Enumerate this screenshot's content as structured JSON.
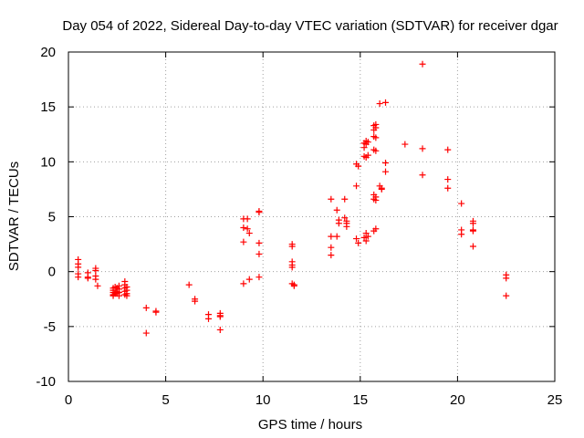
{
  "chart_data": {
    "type": "scatter",
    "title": "Day 054 of 2022, Sidereal Day-to-day VTEC variation (SDTVAR) for receiver dgar",
    "xlabel": "GPS time / hours",
    "ylabel": "SDTVAR / TECUs",
    "xlim": [
      0,
      25
    ],
    "ylim": [
      -10,
      20
    ],
    "xticks": [
      0,
      5,
      10,
      15,
      20,
      25
    ],
    "yticks": [
      -10,
      -5,
      0,
      5,
      10,
      15,
      20
    ],
    "grid": true,
    "marker": "plus",
    "color": "#ff0000",
    "series": [
      {
        "name": "SDTVAR",
        "x": [
          0.5,
          0.5,
          0.5,
          0.5,
          0.5,
          1.0,
          1.0,
          1.0,
          1.4,
          1.4,
          1.4,
          1.4,
          1.5,
          2.3,
          2.3,
          2.3,
          2.3,
          2.3,
          2.4,
          2.4,
          2.5,
          2.5,
          2.5,
          2.6,
          2.6,
          2.6,
          2.6,
          2.9,
          2.9,
          2.9,
          2.9,
          2.9,
          3.0,
          3.0,
          3.0,
          3.0,
          4.0,
          4.0,
          4.5,
          4.5,
          6.2,
          6.5,
          6.5,
          7.2,
          7.2,
          7.8,
          7.8,
          7.8,
          7.8,
          9.0,
          9.0,
          9.0,
          9.0,
          9.2,
          9.2,
          9.3,
          9.3,
          9.8,
          9.8,
          9.8,
          9.8,
          9.8,
          11.5,
          11.5,
          11.5,
          11.5,
          11.5,
          11.5,
          11.6,
          11.6,
          13.5,
          13.5,
          13.5,
          13.5,
          13.8,
          13.8,
          13.9,
          13.9,
          14.2,
          14.2,
          14.3,
          14.3,
          14.3,
          14.8,
          14.8,
          14.8,
          14.9,
          14.9,
          15.2,
          15.2,
          15.2,
          15.2,
          15.3,
          15.3,
          15.3,
          15.3,
          15.3,
          15.4,
          15.4,
          15.4,
          15.7,
          15.7,
          15.7,
          15.7,
          15.7,
          15.7,
          15.7,
          15.8,
          15.8,
          15.8,
          15.8,
          15.8,
          15.8,
          15.8,
          16.0,
          16.0,
          16.1,
          16.1,
          16.3,
          16.3,
          16.3,
          17.3,
          18.2,
          18.2,
          18.2,
          19.5,
          19.5,
          19.5,
          20.2,
          20.2,
          20.2,
          20.8,
          20.8,
          20.8,
          20.8,
          20.8,
          22.5,
          22.5,
          22.5
        ],
        "y": [
          1.1,
          0.7,
          0.4,
          -0.2,
          -0.5,
          -0.1,
          -0.5,
          -0.6,
          0.3,
          0.1,
          -0.4,
          -0.7,
          -1.3,
          -1.5,
          -1.7,
          -1.9,
          -2.1,
          -2.2,
          -1.4,
          -2.0,
          -1.5,
          -1.8,
          -2.0,
          -1.3,
          -1.6,
          -1.9,
          -2.2,
          -0.9,
          -1.2,
          -1.5,
          -1.8,
          -2.1,
          -1.4,
          -1.7,
          -2.0,
          -2.2,
          -3.3,
          -5.6,
          -3.6,
          -3.7,
          -1.2,
          -2.5,
          -2.7,
          -3.9,
          -4.3,
          -3.8,
          -4.0,
          -4.1,
          -5.3,
          4.8,
          4.0,
          2.7,
          -1.1,
          4.8,
          3.9,
          3.5,
          -0.7,
          5.5,
          5.4,
          2.6,
          1.6,
          -0.5,
          2.5,
          2.3,
          0.9,
          0.6,
          0.4,
          -1.1,
          -1.2,
          -1.3,
          6.6,
          3.2,
          2.2,
          1.5,
          5.6,
          3.2,
          4.7,
          4.4,
          6.6,
          4.9,
          4.6,
          4.4,
          4.1,
          9.8,
          7.8,
          3.0,
          9.6,
          2.6,
          11.7,
          11.3,
          10.5,
          3.1,
          11.9,
          11.6,
          10.4,
          3.5,
          2.8,
          11.8,
          10.6,
          3.2,
          13.3,
          12.9,
          12.3,
          11.1,
          7.0,
          6.6,
          3.7,
          13.4,
          13.1,
          12.2,
          11.0,
          6.8,
          6.5,
          3.9,
          15.3,
          7.8,
          7.6,
          7.5,
          15.4,
          9.9,
          9.1,
          11.6,
          18.9,
          11.2,
          8.8,
          11.1,
          8.4,
          7.6,
          6.2,
          3.8,
          3.4,
          4.6,
          4.4,
          3.8,
          3.7,
          2.3,
          -0.3,
          -0.6,
          -2.2
        ]
      }
    ]
  }
}
